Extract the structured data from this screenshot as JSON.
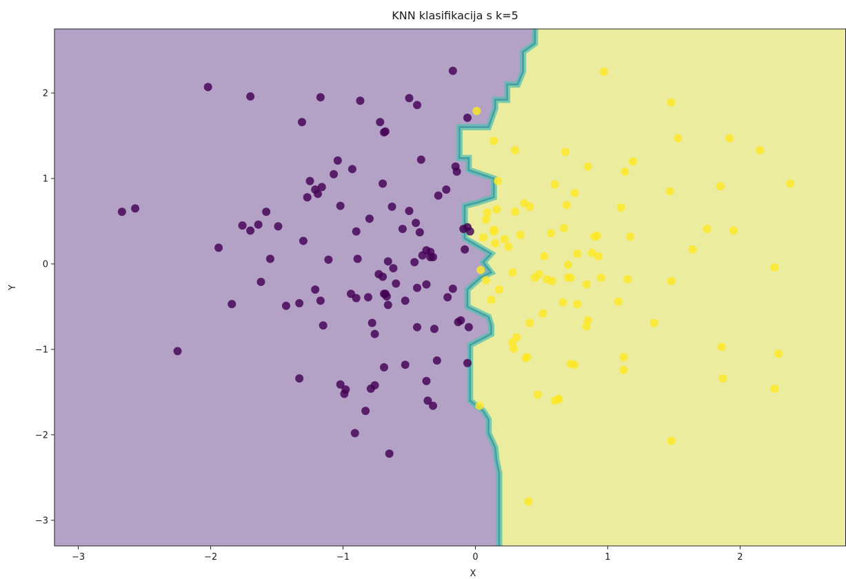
{
  "chart_data": {
    "type": "scatter",
    "title": "KNN klasifikacija s k=5",
    "xlabel": "X",
    "ylabel": "Y",
    "xlim": [
      -3.18,
      2.8
    ],
    "ylim": [
      -3.3,
      2.75
    ],
    "xticks": [
      -3,
      -2,
      -1,
      0,
      1,
      2
    ],
    "yticks": [
      -3,
      -2,
      -1,
      0,
      1,
      2
    ],
    "xtick_labels": [
      "−3",
      "−2",
      "−1",
      "0",
      "1",
      "2"
    ],
    "ytick_labels": [
      "−3",
      "−2",
      "−1",
      "0",
      "1",
      "2"
    ],
    "grid": false,
    "k": 5,
    "colors": {
      "region_class0": "#b3a1c6",
      "region_class1": "#ecec9f",
      "boundary_stroke": "#55c0ad",
      "boundary_stroke_inner": "#2e8fa0",
      "point_class0": "#440154",
      "point_class1": "#fde725"
    },
    "decision_boundary": {
      "x": [
        0.45,
        0.45,
        0.36,
        0.36,
        0.32,
        0.24,
        0.24,
        0.15,
        0.15,
        0.1,
        -0.12,
        -0.12,
        -0.05,
        -0.05,
        0.14,
        0.14,
        0.02,
        -0.08,
        -0.08,
        0.12,
        0.06,
        0.12,
        0.04,
        -0.06,
        -0.06,
        0.1,
        0.12,
        0.12,
        -0.04,
        -0.04,
        0.06,
        0.1,
        0.1,
        0.15,
        0.16,
        0.18,
        0.18
      ],
      "y": [
        2.75,
        2.58,
        2.48,
        2.25,
        2.1,
        2.1,
        1.92,
        1.92,
        1.82,
        1.6,
        1.6,
        1.24,
        1.24,
        1.1,
        1.0,
        0.78,
        0.72,
        0.68,
        0.3,
        0.12,
        0.02,
        -0.1,
        -0.16,
        -0.3,
        -0.5,
        -0.62,
        -0.72,
        -0.82,
        -0.95,
        -1.6,
        -1.72,
        -1.82,
        -1.98,
        -2.15,
        -2.3,
        -2.45,
        -3.3
      ]
    },
    "series": [
      {
        "class": 0,
        "x": [
          -2.02,
          -1.7,
          -1.17,
          -0.17,
          -0.5,
          -0.44,
          -1.31,
          -0.72,
          -0.68,
          -0.69,
          -0.87,
          -0.06,
          -0.41,
          -1.04,
          -0.93,
          -1.07,
          -0.7,
          -0.15,
          -0.14,
          -1.25,
          -0.22,
          -1.16,
          -1.19,
          -1.27,
          -1.21,
          -2.67,
          -2.57,
          -1.58,
          -1.02,
          -0.63,
          -0.28,
          -0.5,
          -1.76,
          -1.7,
          -1.64,
          -1.49,
          -0.8,
          -0.45,
          -0.55,
          -0.42,
          -0.09,
          -0.06,
          -0.9,
          -1.3,
          -1.94,
          -0.04,
          -0.37,
          -0.34,
          -0.32,
          -0.4,
          -1.55,
          -1.11,
          -0.89,
          -0.66,
          -0.62,
          -0.34,
          -0.46,
          -0.7,
          -0.73,
          -0.08,
          -1.62,
          -0.6,
          -0.69,
          -0.44,
          -0.37,
          -0.17,
          -0.21,
          -0.68,
          -0.67,
          -0.94,
          -0.53,
          -0.66,
          -1.84,
          -1.43,
          -1.33,
          -1.17,
          -1.21,
          -0.9,
          -0.81,
          -1.15,
          -0.11,
          -0.13,
          -0.31,
          -0.44,
          -0.78,
          -0.76,
          -0.05,
          -2.25,
          -0.29,
          -0.69,
          -0.53,
          -0.06,
          -1.02,
          -1.33,
          -0.98,
          -0.99,
          -0.76,
          -0.79,
          -0.37,
          -0.36,
          -0.32,
          -0.83,
          -0.91,
          -0.65
        ],
        "y": [
          2.07,
          1.96,
          1.95,
          2.26,
          1.94,
          1.86,
          1.66,
          1.66,
          1.55,
          1.54,
          1.91,
          1.71,
          1.22,
          1.21,
          1.11,
          1.05,
          0.94,
          1.14,
          1.08,
          0.97,
          0.87,
          0.9,
          0.82,
          0.78,
          0.87,
          0.61,
          0.65,
          0.61,
          0.68,
          0.67,
          0.8,
          0.62,
          0.45,
          0.39,
          0.46,
          0.44,
          0.53,
          0.48,
          0.41,
          0.37,
          0.41,
          0.43,
          0.38,
          0.27,
          0.19,
          0.38,
          0.16,
          0.14,
          0.08,
          0.1,
          0.06,
          0.05,
          0.06,
          0.03,
          -0.05,
          0.08,
          0.02,
          -0.15,
          -0.12,
          0.17,
          -0.21,
          -0.23,
          -0.35,
          -0.28,
          -0.24,
          -0.29,
          -0.39,
          -0.35,
          -0.38,
          -0.35,
          -0.43,
          -0.48,
          -0.47,
          -0.49,
          -0.46,
          -0.43,
          -0.3,
          -0.4,
          -0.39,
          -0.72,
          -0.66,
          -0.68,
          -0.76,
          -0.74,
          -0.69,
          -0.82,
          -0.74,
          -1.02,
          -1.13,
          -1.21,
          -1.18,
          -1.16,
          -1.41,
          -1.34,
          -1.47,
          -1.52,
          -1.42,
          -1.46,
          -1.37,
          -1.6,
          -1.66,
          -1.72,
          -1.98,
          -2.22
        ]
      },
      {
        "class": 1,
        "x": [
          0.97,
          1.48,
          0.01,
          0.14,
          0.3,
          0.68,
          0.85,
          1.19,
          1.13,
          1.53,
          1.92,
          2.15,
          0.17,
          0.6,
          0.75,
          0.69,
          0.08,
          0.16,
          0.09,
          0.3,
          0.37,
          0.41,
          1.1,
          1.47,
          1.85,
          2.38,
          1.75,
          1.95,
          0.34,
          0.57,
          0.67,
          0.92,
          0.9,
          1.17,
          0.14,
          0.15,
          0.22,
          0.25,
          0.06,
          0.14,
          0.08,
          0.18,
          0.7,
          0.77,
          0.88,
          0.52,
          0.93,
          0.48,
          0.45,
          0.54,
          0.58,
          0.7,
          0.72,
          0.84,
          0.95,
          1.15,
          1.48,
          2.26,
          1.64,
          0.04,
          0.12,
          0.28,
          0.41,
          0.66,
          0.51,
          0.77,
          0.85,
          0.84,
          1.08,
          1.35,
          0.31,
          0.28,
          0.29,
          0.38,
          0.39,
          0.47,
          0.6,
          0.63,
          0.72,
          1.12,
          1.12,
          1.86,
          1.87,
          2.26,
          2.29,
          0.75,
          0.03,
          0.63,
          0.4,
          1.48
        ],
        "y": [
          2.25,
          1.89,
          1.79,
          1.44,
          1.33,
          1.31,
          1.14,
          1.2,
          1.08,
          1.47,
          1.47,
          1.33,
          0.97,
          0.93,
          0.83,
          0.69,
          0.52,
          0.64,
          0.6,
          0.61,
          0.71,
          0.67,
          0.66,
          0.85,
          0.91,
          0.94,
          0.41,
          0.39,
          0.34,
          0.36,
          0.42,
          0.33,
          0.32,
          0.32,
          0.38,
          0.24,
          0.29,
          0.2,
          0.31,
          0.4,
          -0.19,
          -0.3,
          -0.01,
          0.12,
          0.13,
          0.09,
          0.09,
          -0.12,
          -0.16,
          -0.18,
          -0.2,
          -0.16,
          -0.16,
          -0.24,
          -0.16,
          -0.18,
          -0.2,
          -0.04,
          0.17,
          -0.07,
          -0.42,
          -0.1,
          -0.69,
          -0.45,
          -0.58,
          -0.47,
          -0.66,
          -0.73,
          -0.44,
          -0.69,
          -0.86,
          -0.92,
          -0.99,
          -1.1,
          -1.09,
          -1.53,
          -1.6,
          -1.58,
          -1.17,
          -1.09,
          -1.24,
          -0.97,
          -1.34,
          -1.46,
          -1.05,
          -1.18,
          -1.66,
          -1.58,
          -2.78,
          -2.07
        ]
      }
    ]
  }
}
